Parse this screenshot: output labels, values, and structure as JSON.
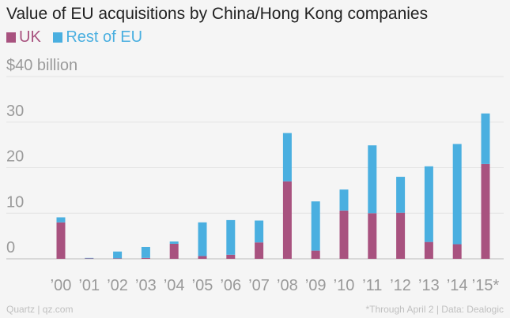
{
  "chart_data": {
    "type": "bar",
    "stacked": true,
    "title": "Value of EU acquisitions by China/Hong Kong companies",
    "categories": [
      "’00",
      "’01",
      "’02",
      "’03",
      "’04",
      "’05",
      "’06",
      "’07",
      "’08",
      "’09",
      "’10",
      "’11",
      "’12",
      "’13",
      "’14",
      "’15*"
    ],
    "series": [
      {
        "name": "UK",
        "color": "#a8527f",
        "values": [
          8.0,
          0.1,
          0.1,
          0.2,
          3.3,
          0.6,
          0.9,
          3.6,
          17.0,
          1.8,
          10.6,
          10.0,
          10.1,
          3.7,
          3.2,
          20.8
        ]
      },
      {
        "name": "Rest of EU",
        "color": "#4aafe0",
        "values": [
          1.1,
          0.1,
          1.5,
          2.4,
          0.5,
          7.4,
          7.6,
          4.8,
          10.6,
          10.8,
          4.6,
          14.9,
          7.9,
          16.6,
          22.0,
          11.1
        ]
      }
    ],
    "yticks": [
      {
        "value": 0,
        "label": "0"
      },
      {
        "value": 10,
        "label": "10"
      },
      {
        "value": 20,
        "label": "20"
      },
      {
        "value": 30,
        "label": "30"
      },
      {
        "value": 40,
        "label": "$40 billion"
      }
    ],
    "ylim": [
      0,
      40
    ],
    "grid": true
  },
  "footer": {
    "source_left": "Quartz | qz.com",
    "note_right": "*Through April 2 | Data: Dealogic"
  }
}
